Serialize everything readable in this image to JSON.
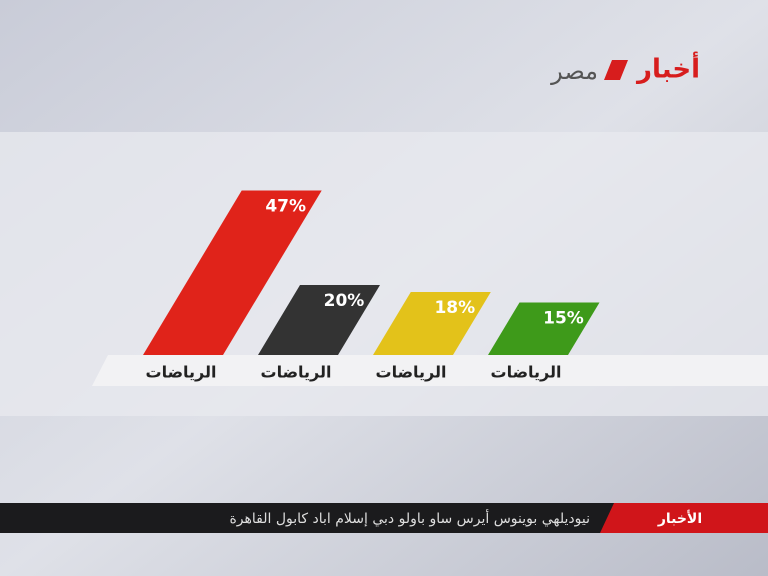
{
  "logo": {
    "main": "أخبار",
    "sub": "مصر"
  },
  "ticker": {
    "label": "الأخبار",
    "text": "نيوديلهي بوينوس أيرس ساو باولو دبي إسلام اباد كابول القاهرة"
  },
  "chart_data": {
    "type": "bar",
    "categories": [
      "الرياضات",
      "الرياضات",
      "الرياضات",
      "الرياضات"
    ],
    "values": [
      47,
      20,
      18,
      15
    ],
    "value_labels": [
      "47%",
      "20%",
      "18%",
      "15%"
    ],
    "colors": [
      "#e0231a",
      "#333333",
      "#e3c21a",
      "#3e9a1a"
    ]
  }
}
